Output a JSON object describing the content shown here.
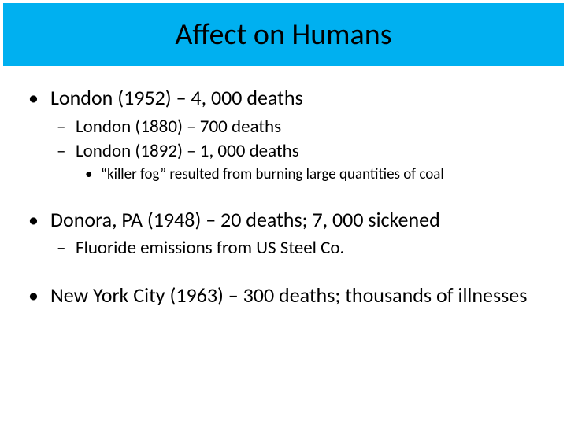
{
  "title": "Affect on Humans",
  "colors": {
    "title_bg": "#00b0f0",
    "title_text": "#000000",
    "body_text": "#000000",
    "background": "#ffffff"
  },
  "fonts": {
    "title_size_pt": 38,
    "lvl1_size_pt": 26,
    "lvl2_size_pt": 23,
    "lvl3_size_pt": 19,
    "family": "Calibri"
  },
  "bullets": {
    "lvl1": "•",
    "lvl2": "–",
    "lvl3": "•"
  },
  "items": [
    {
      "level": 1,
      "text": "London (1952) – 4, 000 deaths"
    },
    {
      "level": 2,
      "text": "London (1880) – 700 deaths"
    },
    {
      "level": 2,
      "text": "London (1892) – 1, 000 deaths"
    },
    {
      "level": 3,
      "text": "“killer fog” resulted from burning large quantities of coal"
    },
    {
      "level": "gap"
    },
    {
      "level": 1,
      "text": "Donora, PA (1948) – 20 deaths; 7, 000 sickened"
    },
    {
      "level": 2,
      "text": "Fluoride emissions from US Steel Co."
    },
    {
      "level": "gap"
    },
    {
      "level": 1,
      "text": "New York City (1963) – 300 deaths; thousands of illnesses"
    }
  ]
}
